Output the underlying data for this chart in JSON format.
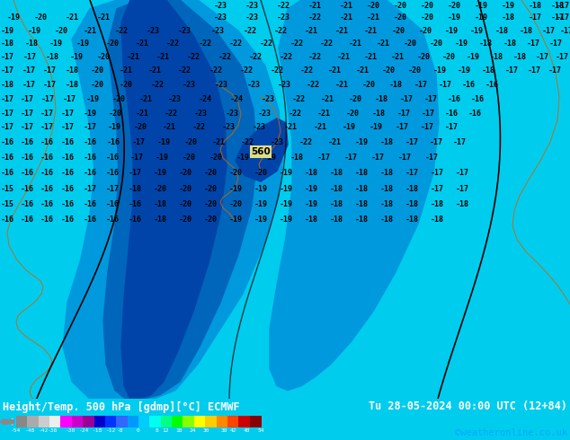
{
  "title_left": "Height/Temp. 500 hPa [gdmp][°C] ECMWF",
  "title_right": "Tu 28-05-2024 00:00 UTC (12+84)",
  "credit": "©weatheronline.co.uk",
  "bg_color": "#00ccee",
  "cyan_bg": "#00ddee",
  "mid_blue": "#0099dd",
  "deep_blue": "#0066bb",
  "deeper_blue": "#0044aa",
  "darkest_blue": "#003399",
  "bottom_bar_bg": "#000000",
  "figsize": [
    6.34,
    4.9
  ],
  "dpi": 100,
  "cb_colors": [
    "#888888",
    "#aaaaaa",
    "#cccccc",
    "#eeeeee",
    "#ff00ff",
    "#cc00cc",
    "#990099",
    "#0000cc",
    "#0033ff",
    "#3366ff",
    "#0099ff",
    "#00ccff",
    "#00ffee",
    "#00ff88",
    "#00ff00",
    "#88ff00",
    "#ffff00",
    "#ffcc00",
    "#ff8800",
    "#ff4400",
    "#cc0000",
    "#880000"
  ],
  "contour_color_black": "#000000",
  "contour_color_orange": "#cc6600",
  "label_color": "#000000",
  "label560_bg": "#dddd88",
  "label_fontsize": 6.0,
  "label560_fontsize": 7.5
}
